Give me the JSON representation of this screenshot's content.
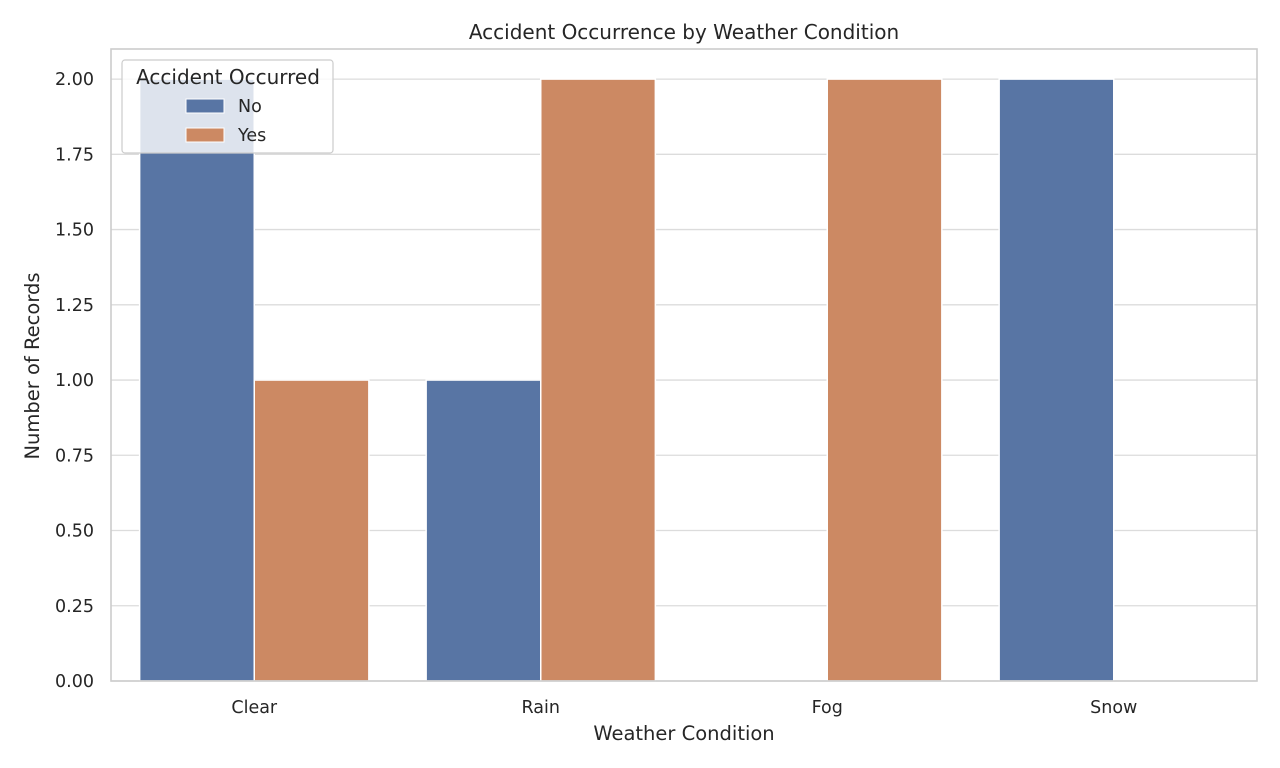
{
  "chart_data": {
    "type": "bar",
    "title": "Accident Occurrence by Weather Condition",
    "xlabel": "Weather Condition",
    "ylabel": "Number of Records",
    "categories": [
      "Clear",
      "Rain",
      "Fog",
      "Snow"
    ],
    "series": [
      {
        "name": "No",
        "color": "#5875a4",
        "values": [
          2,
          1,
          0,
          2
        ]
      },
      {
        "name": "Yes",
        "color": "#cc8963",
        "values": [
          1,
          2,
          2,
          0
        ]
      }
    ],
    "ylim": [
      0,
      2.1
    ],
    "yticks": [
      "0.00",
      "0.25",
      "0.50",
      "0.75",
      "1.00",
      "1.25",
      "1.50",
      "1.75",
      "2.00"
    ],
    "grid": true,
    "legend": {
      "title": "Accident Occurred",
      "placement": "top-left"
    }
  }
}
